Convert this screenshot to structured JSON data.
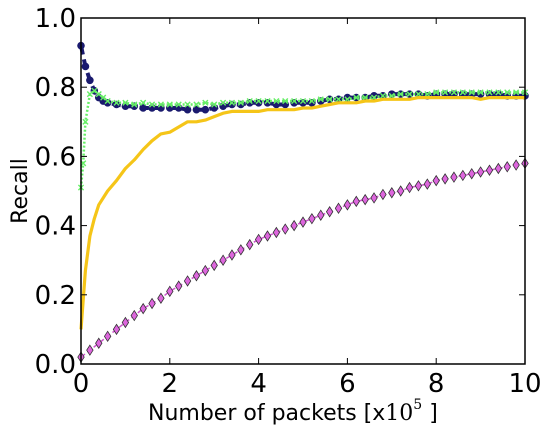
{
  "chart_data": {
    "type": "line",
    "title": "",
    "xlabel_prefix": "Number of packets [x",
    "xlabel_base": "10",
    "xlabel_exponent": "5",
    "xlabel_suffix": " ]",
    "ylabel": "Recall",
    "xlim": [
      0,
      10
    ],
    "ylim": [
      0.0,
      1.0
    ],
    "xticks": [
      "0",
      "2",
      "4",
      "6",
      "8",
      "10"
    ],
    "yticks": [
      "0.0",
      "0.2",
      "0.4",
      "0.6",
      "0.8",
      "1.0"
    ],
    "grid": false,
    "legend": "none",
    "series": [
      {
        "color": "#1a1a6e",
        "style": "dashed-with-dots",
        "x": [
          0.0,
          0.1,
          0.2,
          0.3,
          0.4,
          0.5,
          0.6,
          0.8,
          1.0,
          1.2,
          1.4,
          1.6,
          1.8,
          2.0,
          2.2,
          2.4,
          2.6,
          2.8,
          3.0,
          3.2,
          3.4,
          3.6,
          3.8,
          4.0,
          4.2,
          4.4,
          4.6,
          4.8,
          5.0,
          5.2,
          5.4,
          5.6,
          5.8,
          6.0,
          6.2,
          6.4,
          6.6,
          6.8,
          7.0,
          7.2,
          7.4,
          7.6,
          7.8,
          8.0,
          8.2,
          8.4,
          8.6,
          8.8,
          9.0,
          9.2,
          9.4,
          9.6,
          9.8,
          10.0
        ],
        "y": [
          0.92,
          0.86,
          0.82,
          0.79,
          0.77,
          0.76,
          0.755,
          0.75,
          0.745,
          0.745,
          0.74,
          0.74,
          0.74,
          0.74,
          0.74,
          0.735,
          0.735,
          0.735,
          0.74,
          0.745,
          0.75,
          0.75,
          0.755,
          0.755,
          0.755,
          0.75,
          0.75,
          0.755,
          0.755,
          0.755,
          0.76,
          0.765,
          0.765,
          0.77,
          0.77,
          0.77,
          0.775,
          0.775,
          0.78,
          0.78,
          0.78,
          0.78,
          0.775,
          0.78,
          0.78,
          0.78,
          0.78,
          0.78,
          0.78,
          0.78,
          0.78,
          0.775,
          0.775,
          0.775
        ]
      },
      {
        "color": "#66ee66",
        "style": "dotted-with-x",
        "x": [
          0.0,
          0.05,
          0.1,
          0.2,
          0.3,
          0.4,
          0.5,
          0.6,
          0.8,
          1.0,
          1.2,
          1.4,
          1.6,
          1.8,
          2.0,
          2.2,
          2.4,
          2.6,
          2.8,
          3.0,
          3.2,
          3.4,
          3.6,
          3.8,
          4.0,
          4.2,
          4.4,
          4.6,
          4.8,
          5.0,
          5.2,
          5.4,
          5.6,
          5.8,
          6.0,
          6.2,
          6.4,
          6.6,
          6.8,
          7.0,
          7.2,
          7.4,
          7.6,
          7.8,
          8.0,
          8.2,
          8.4,
          8.6,
          8.8,
          9.0,
          9.2,
          9.4,
          9.6,
          9.8,
          10.0
        ],
        "y": [
          0.51,
          0.58,
          0.7,
          0.78,
          0.79,
          0.78,
          0.77,
          0.76,
          0.755,
          0.755,
          0.75,
          0.755,
          0.75,
          0.75,
          0.75,
          0.75,
          0.75,
          0.75,
          0.755,
          0.75,
          0.755,
          0.755,
          0.755,
          0.76,
          0.76,
          0.76,
          0.76,
          0.76,
          0.76,
          0.76,
          0.76,
          0.765,
          0.765,
          0.765,
          0.765,
          0.77,
          0.77,
          0.77,
          0.775,
          0.775,
          0.78,
          0.78,
          0.78,
          0.78,
          0.785,
          0.785,
          0.785,
          0.785,
          0.785,
          0.785,
          0.785,
          0.785,
          0.785,
          0.785,
          0.785
        ]
      },
      {
        "color": "#f5c518",
        "style": "solid",
        "x": [
          0.0,
          0.1,
          0.2,
          0.3,
          0.4,
          0.6,
          0.8,
          1.0,
          1.2,
          1.4,
          1.6,
          1.8,
          2.0,
          2.2,
          2.4,
          2.6,
          2.8,
          3.0,
          3.2,
          3.4,
          3.6,
          3.8,
          4.0,
          4.2,
          4.4,
          4.6,
          4.8,
          5.0,
          5.2,
          5.4,
          5.6,
          5.8,
          6.0,
          6.2,
          6.4,
          6.6,
          6.8,
          7.0,
          7.2,
          7.4,
          7.6,
          7.8,
          8.0,
          8.2,
          8.4,
          8.6,
          8.8,
          9.0,
          9.2,
          9.4,
          9.6,
          9.8,
          10.0
        ],
        "y": [
          0.1,
          0.27,
          0.37,
          0.42,
          0.46,
          0.5,
          0.53,
          0.565,
          0.59,
          0.62,
          0.645,
          0.665,
          0.67,
          0.685,
          0.7,
          0.7,
          0.705,
          0.715,
          0.725,
          0.73,
          0.73,
          0.73,
          0.73,
          0.735,
          0.735,
          0.735,
          0.735,
          0.74,
          0.74,
          0.745,
          0.75,
          0.755,
          0.755,
          0.755,
          0.76,
          0.76,
          0.765,
          0.765,
          0.765,
          0.765,
          0.77,
          0.77,
          0.77,
          0.77,
          0.77,
          0.77,
          0.77,
          0.765,
          0.77,
          0.77,
          0.77,
          0.77,
          0.77
        ]
      },
      {
        "color": "#cc55cc",
        "style": "dashed-with-diamonds",
        "x": [
          0.0,
          0.2,
          0.4,
          0.6,
          0.8,
          1.0,
          1.2,
          1.4,
          1.6,
          1.8,
          2.0,
          2.2,
          2.4,
          2.6,
          2.8,
          3.0,
          3.2,
          3.4,
          3.6,
          3.8,
          4.0,
          4.2,
          4.4,
          4.6,
          4.8,
          5.0,
          5.2,
          5.4,
          5.6,
          5.8,
          6.0,
          6.2,
          6.4,
          6.6,
          6.8,
          7.0,
          7.2,
          7.4,
          7.6,
          7.8,
          8.0,
          8.2,
          8.4,
          8.6,
          8.8,
          9.0,
          9.2,
          9.4,
          9.6,
          9.8,
          10.0
        ],
        "y": [
          0.02,
          0.04,
          0.06,
          0.08,
          0.1,
          0.12,
          0.14,
          0.16,
          0.175,
          0.19,
          0.21,
          0.225,
          0.24,
          0.255,
          0.27,
          0.285,
          0.3,
          0.315,
          0.33,
          0.345,
          0.36,
          0.37,
          0.38,
          0.39,
          0.4,
          0.41,
          0.42,
          0.43,
          0.44,
          0.45,
          0.46,
          0.47,
          0.475,
          0.48,
          0.49,
          0.495,
          0.5,
          0.51,
          0.515,
          0.52,
          0.53,
          0.535,
          0.54,
          0.545,
          0.55,
          0.555,
          0.56,
          0.565,
          0.57,
          0.575,
          0.58
        ]
      }
    ]
  }
}
